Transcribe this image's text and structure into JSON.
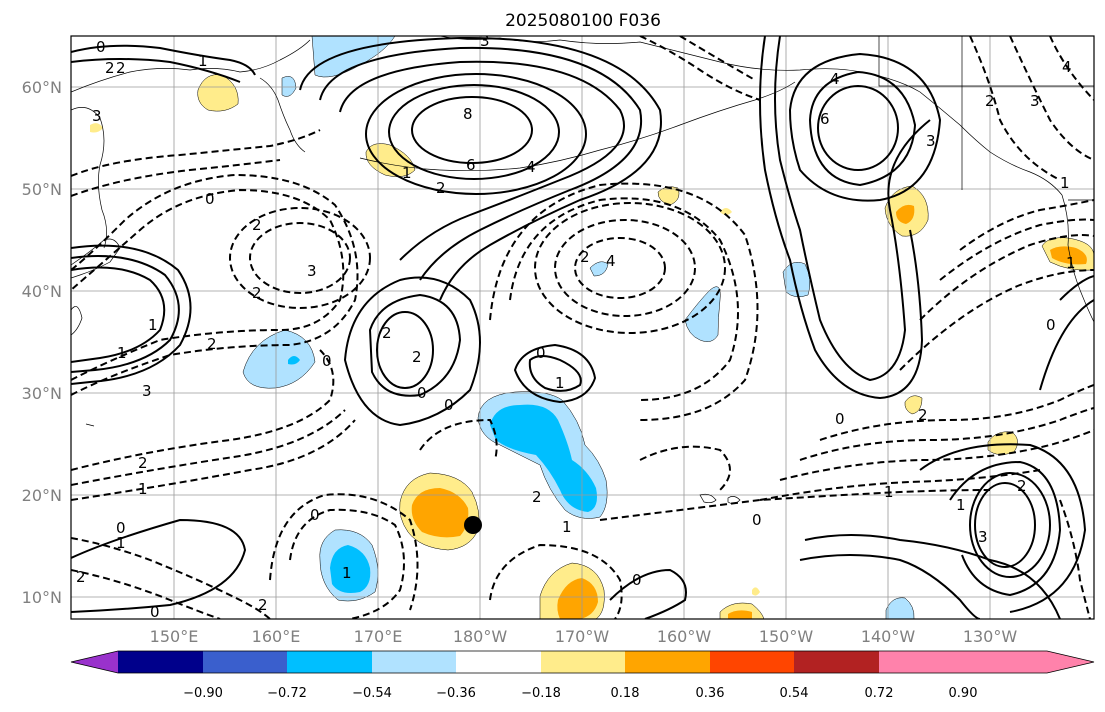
{
  "title": "2025080100 F036",
  "lon_labels": [
    "150°E",
    "160°E",
    "170°E",
    "180°W",
    "170°W",
    "160°W",
    "150°W",
    "140°W",
    "130°W"
  ],
  "lat_labels": [
    "60°N",
    "50°N",
    "40°N",
    "30°N",
    "20°N",
    "10°N"
  ],
  "colorbar": {
    "tick_labels": [
      "−0.90",
      "−0.72",
      "−0.54",
      "−0.36",
      "−0.18",
      "0.18",
      "0.36",
      "0.54",
      "0.72",
      "0.90"
    ],
    "colors": [
      "#9932cc",
      "#00008b",
      "#3a5fcd",
      "#00bfff",
      "#b0e2ff",
      "#ffffff",
      "#ffec8b",
      "#ffa500",
      "#ff4500",
      "#b22222",
      "#ff82ab"
    ]
  },
  "contour_labels": {
    "l_8": "8",
    "l_6": "6",
    "l_4": "4",
    "l_2a": "2",
    "l_1a": "1",
    "l_2b": "2",
    "l_0a": "0",
    "l_m3a": "3",
    "l_m2a": "2",
    "l_m2b": "2",
    "l_m3b": "3",
    "l_m2c": "2",
    "l_m3c": "3",
    "l_2c": "2",
    "l_2d": "2",
    "l_0b": "0",
    "l_0c": "0",
    "l_0d": "0",
    "l_1b": "1",
    "l_m2d": "2",
    "l_m1a": "1",
    "l_0e": "0",
    "l_1c": "1",
    "l_m2e": "2",
    "l_0f": "0",
    "l_m1b": "1",
    "l_0g": "0",
    "l_m4": "4",
    "l_m2f": "2",
    "l_m3d": "3",
    "l_6b": "6",
    "l_4b": "4",
    "l_3b": "3",
    "l_m1c": "1",
    "l_m4b": "4",
    "l_m3e": "3",
    "l_m2g": "2",
    "l_0h": "0",
    "l_m1d": "1",
    "l_0i": "0",
    "l_2e": "2",
    "l_3c": "3",
    "l_m1e": "1",
    "l_1d": "1",
    "l_0j": "0",
    "l_m2h": "2",
    "l_m1f": "1",
    "l_m2i": "2",
    "l_0k": "0",
    "l_m1g": "1",
    "l_0l": "0",
    "l_m2j": "2",
    "l_m1h": "1",
    "l_0m": "0",
    "l_m2k": "2",
    "l_m1i": "1"
  }
}
